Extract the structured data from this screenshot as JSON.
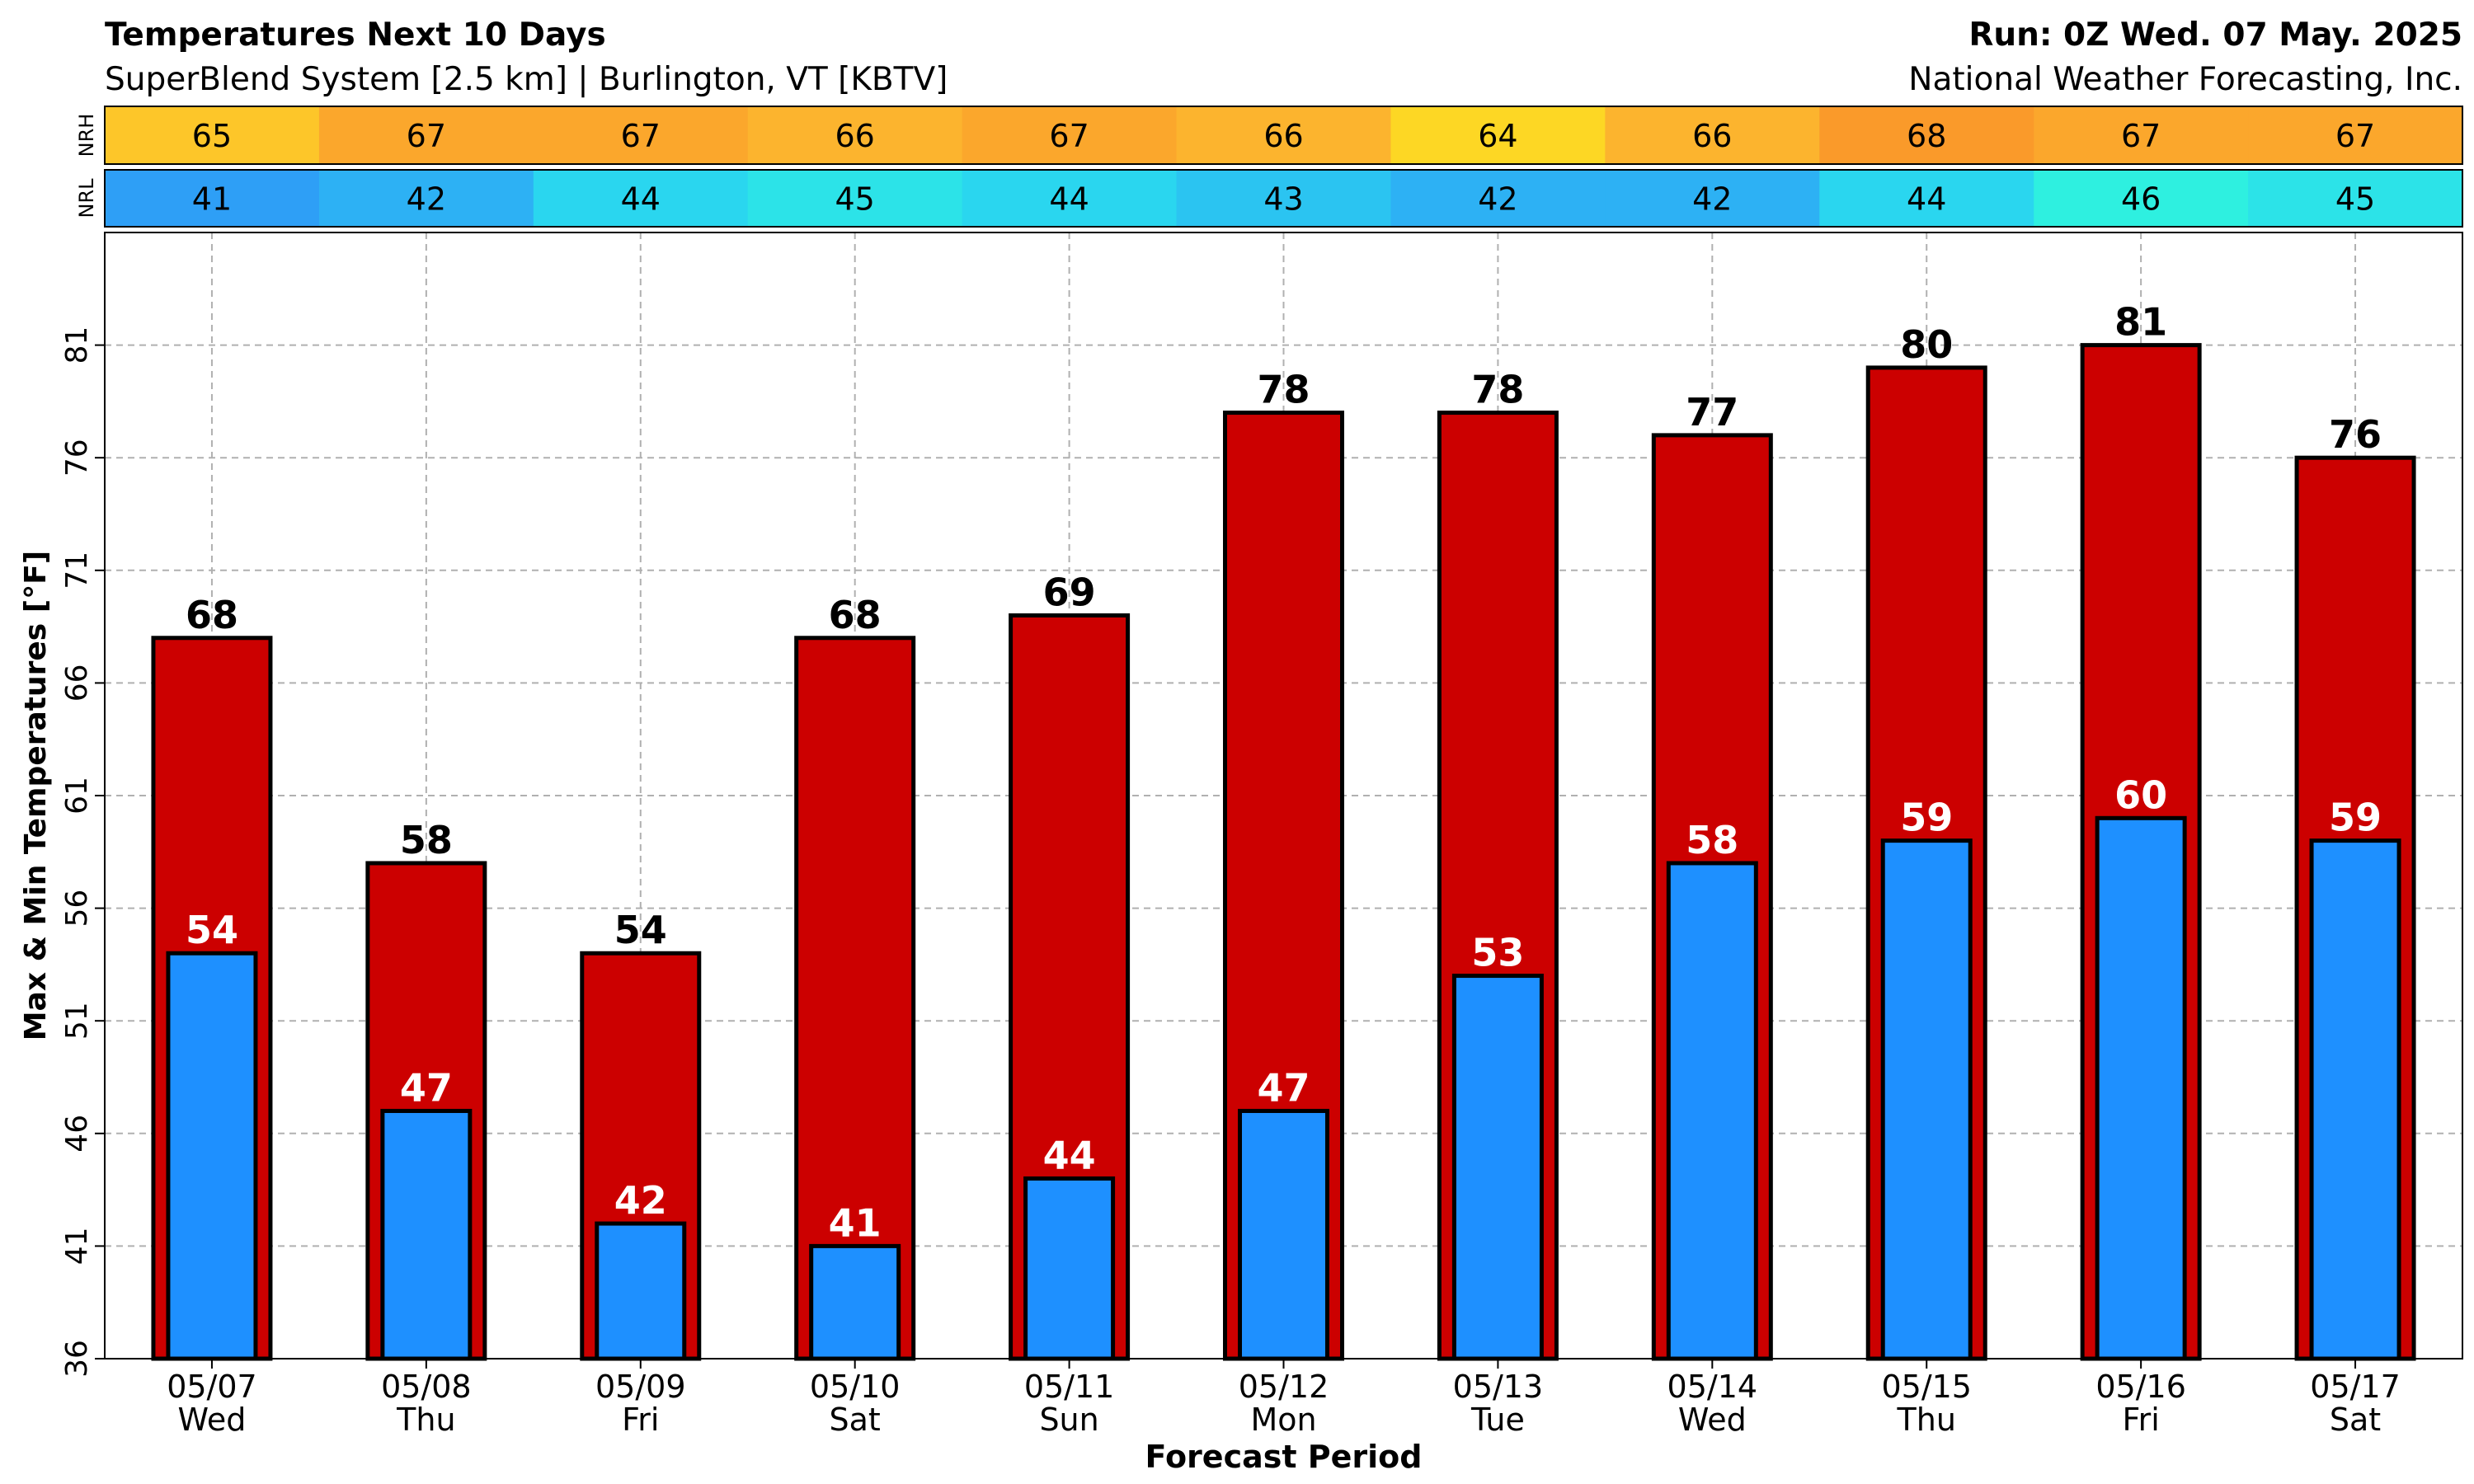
{
  "header": {
    "title": "Temperatures Next 10 Days",
    "subtitle": "SuperBlend System [2.5 km] | Burlington, VT [KBTV]",
    "run": "Run: 0Z Wed. 07 May. 2025",
    "provider": "National Weather Forecasting, Inc."
  },
  "chart_data": {
    "type": "bar",
    "xlabel": "Forecast Period",
    "ylabel": "Max & Min Temperatures [°F]",
    "ylim": [
      36,
      86
    ],
    "yticks": [
      36,
      41,
      46,
      51,
      56,
      61,
      66,
      71,
      76,
      81
    ],
    "grid": true,
    "dates": [
      "05/07",
      "05/08",
      "05/09",
      "05/10",
      "05/11",
      "05/12",
      "05/13",
      "05/14",
      "05/15",
      "05/16",
      "05/17"
    ],
    "days": [
      "Wed",
      "Thu",
      "Fri",
      "Sat",
      "Sun",
      "Mon",
      "Tue",
      "Wed",
      "Thu",
      "Fri",
      "Sat"
    ],
    "series": [
      {
        "key": "max",
        "values": [
          68,
          58,
          54,
          68,
          69,
          78,
          78,
          77,
          80,
          81,
          76
        ],
        "color": "#cc0000"
      },
      {
        "key": "min",
        "values": [
          54,
          47,
          42,
          41,
          44,
          47,
          53,
          58,
          59,
          60,
          59
        ],
        "color": "#1e90ff"
      }
    ],
    "normals": [
      {
        "label": "NRH",
        "values": [
          65,
          67,
          67,
          66,
          67,
          66,
          64,
          66,
          68,
          67,
          67
        ]
      },
      {
        "label": "NRL",
        "values": [
          41,
          42,
          44,
          45,
          44,
          43,
          42,
          42,
          44,
          46,
          45
        ]
      }
    ]
  }
}
